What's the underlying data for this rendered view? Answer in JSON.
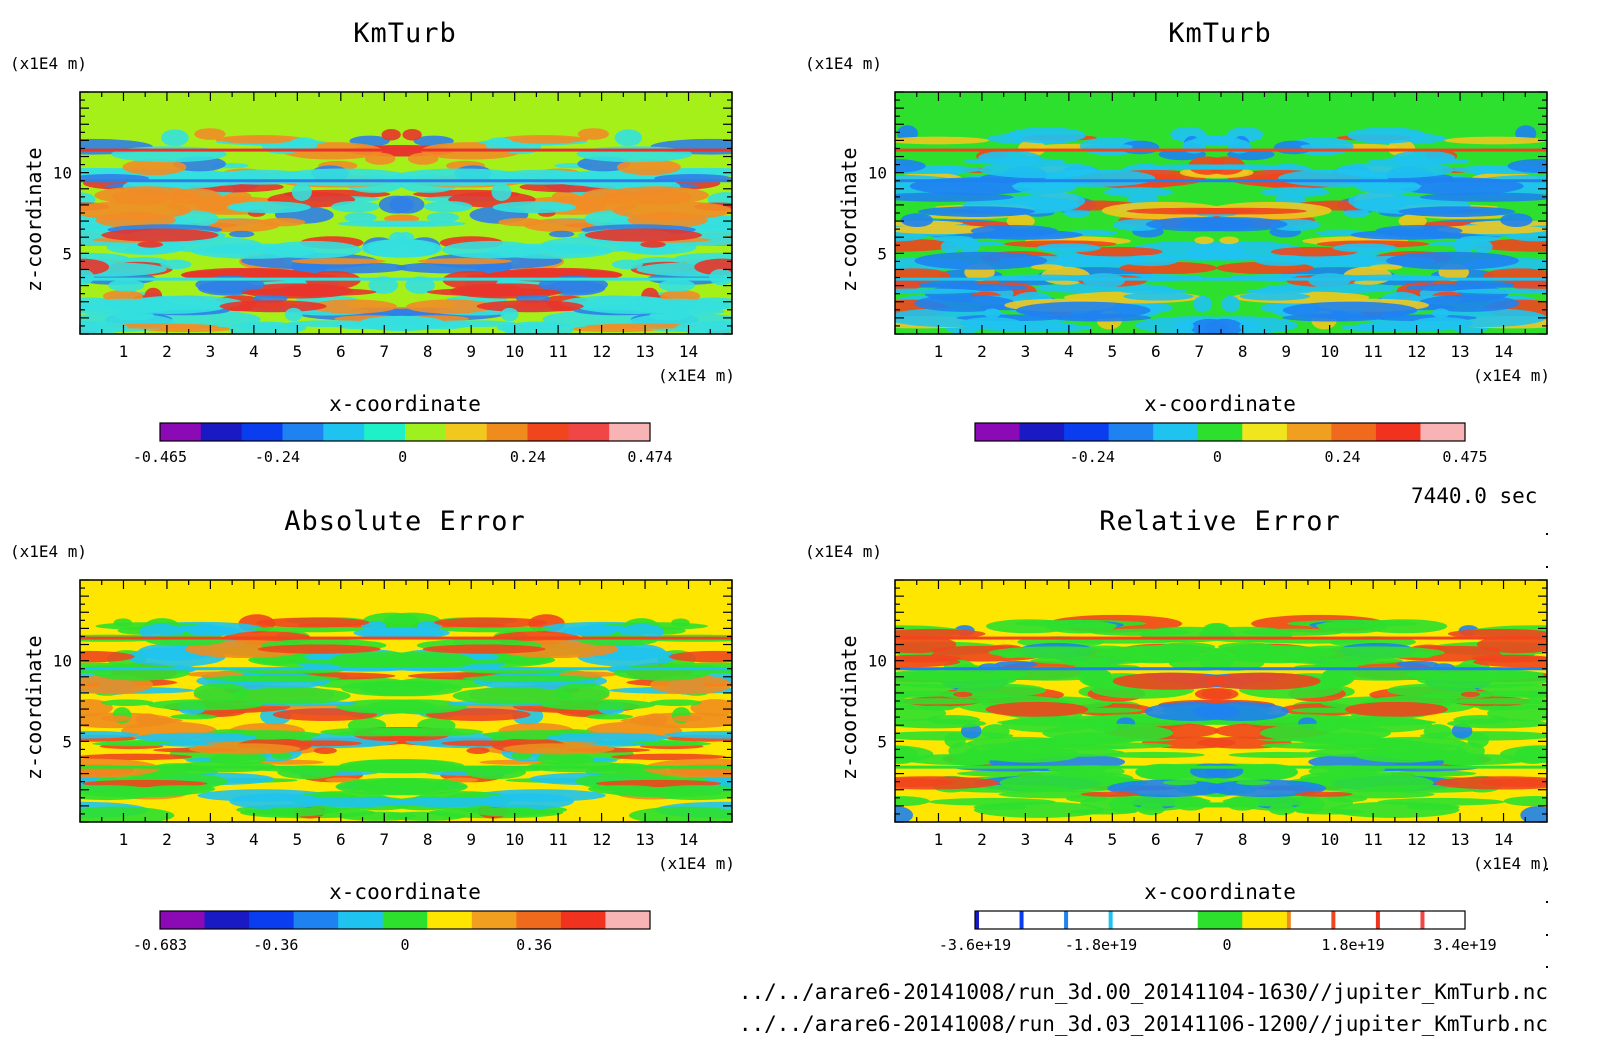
{
  "chart_data": [
    {
      "type": "heatmap",
      "title": "KmTurb",
      "xlabel": "x-coordinate",
      "ylabel": "z-coordinate",
      "x_unit": "(x1E4 m)",
      "y_unit": "(x1E4 m)",
      "xlim": [
        0,
        15
      ],
      "ylim": [
        0,
        15
      ],
      "x_ticks": [
        1,
        2,
        3,
        4,
        5,
        6,
        7,
        8,
        9,
        10,
        11,
        12,
        13,
        14
      ],
      "y_ticks": [
        5,
        10
      ],
      "background_color": "#a6f01a",
      "pattern_colors": [
        "#34e0df",
        "#34e0df",
        "#f28c26",
        "#2f7fe8",
        "#34e0df",
        "#e8342a"
      ],
      "colorbar": {
        "colors": [
          "#8b0ab5",
          "#1a1ac4",
          "#0a3cf0",
          "#1e82f0",
          "#1ec3f0",
          "#1ef0c8",
          "#9ef01e",
          "#f0c81e",
          "#f08c1e",
          "#f0461e",
          "#f04646",
          "#f8b4b4"
        ],
        "tick_labels": [
          "-0.465",
          "-0.24",
          "0",
          "0.24",
          "0.474"
        ],
        "tick_values": [
          -0.465,
          -0.24,
          0,
          0.24,
          0.474
        ],
        "range": [
          -0.465,
          0.474
        ]
      }
    },
    {
      "type": "heatmap",
      "title": "KmTurb",
      "xlabel": "x-coordinate",
      "ylabel": "z-coordinate",
      "x_unit": "(x1E4 m)",
      "y_unit": "(x1E4 m)",
      "xlim": [
        0,
        15
      ],
      "ylim": [
        0,
        15
      ],
      "x_ticks": [
        1,
        2,
        3,
        4,
        5,
        6,
        7,
        8,
        9,
        10,
        11,
        12,
        13,
        14
      ],
      "y_ticks": [
        5,
        10
      ],
      "background_color": "#2ee02e",
      "pattern_colors": [
        "#1ec3f0",
        "#1ec3f0",
        "#f0c81e",
        "#1e82f0",
        "#1ec3f0",
        "#f0461e"
      ],
      "colorbar": {
        "colors": [
          "#8b0ab5",
          "#1a1ac4",
          "#0a3cf0",
          "#1e82f0",
          "#1ec3f0",
          "#2ee02e",
          "#f0e61e",
          "#f0a01e",
          "#f06a1e",
          "#f0321e",
          "#f8b4b4"
        ],
        "tick_labels": [
          "-0.24",
          "0",
          "0.24",
          "0.475"
        ],
        "tick_values": [
          -0.24,
          0,
          0.24,
          0.475
        ],
        "range": [
          -0.465,
          0.475
        ]
      }
    },
    {
      "type": "heatmap",
      "title": "Absolute Error",
      "xlabel": "x-coordinate",
      "ylabel": "z-coordinate",
      "x_unit": "(x1E4 m)",
      "y_unit": "(x1E4 m)",
      "xlim": [
        0,
        15
      ],
      "ylim": [
        0,
        15
      ],
      "x_ticks": [
        1,
        2,
        3,
        4,
        5,
        6,
        7,
        8,
        9,
        10,
        11,
        12,
        13,
        14
      ],
      "y_ticks": [
        5,
        10
      ],
      "background_color": "#ffe600",
      "pattern_colors": [
        "#2ee02e",
        "#2ee02e",
        "#f08c1e",
        "#1ec3f0",
        "#2ee02e",
        "#f0461e"
      ],
      "colorbar": {
        "colors": [
          "#8b0ab5",
          "#1a1ac4",
          "#0a3cf0",
          "#1e82f0",
          "#1ec3f0",
          "#2ee02e",
          "#ffe600",
          "#f0a01e",
          "#f06a1e",
          "#f0321e",
          "#f8b4b4"
        ],
        "tick_labels": [
          "-0.683",
          "-0.36",
          "0",
          "0.36"
        ],
        "tick_values": [
          -0.683,
          -0.36,
          0,
          0.36
        ],
        "range": [
          -0.683,
          0.683
        ]
      }
    },
    {
      "type": "heatmap",
      "title": "Relative Error",
      "xlabel": "x-coordinate",
      "ylabel": "z-coordinate",
      "x_unit": "(x1E4 m)",
      "y_unit": "(x1E4 m)",
      "xlim": [
        0,
        15
      ],
      "ylim": [
        0,
        15
      ],
      "x_ticks": [
        1,
        2,
        3,
        4,
        5,
        6,
        7,
        8,
        9,
        10,
        11,
        12,
        13,
        14
      ],
      "y_ticks": [
        5,
        10
      ],
      "background_color": "#ffe600",
      "pattern_colors": [
        "#2ee02e",
        "#2ee02e",
        "#2ee02e",
        "#1e82f0",
        "#2ee02e",
        "#f0461e"
      ],
      "colorbar": {
        "colors": [
          "#ffffff",
          "#ffffff",
          "#ffffff",
          "#ffffff",
          "#ffffff",
          "#2ee02e",
          "#ffe600",
          "#ffffff",
          "#ffffff",
          "#ffffff",
          "#ffffff"
        ],
        "divider_colors": [
          "#1a1ac4",
          "#0a3cf0",
          "#1e82f0",
          "#1ec3f0",
          "",
          "",
          "",
          "#f08c1e",
          "#f0461e",
          "#f0321e",
          "#f04646"
        ],
        "tick_labels": [
          "-3.6e+19",
          "-1.8e+19",
          "0",
          "1.8e+19",
          "3.4e+19"
        ],
        "tick_values": [
          -3.6e+19,
          -1.8e+19,
          0,
          1.8e+19,
          3.4e+19
        ],
        "range": [
          -3.6e+19,
          3.4e+19
        ]
      }
    }
  ],
  "timestamp": "7440.0 sec",
  "footer": {
    "file_a": "../../arare6-20141008/run_3d.00_20141104-1630//jupiter_KmTurb.nc",
    "file_b": "../../arare6-20141008/run_3d.03_20141106-1200//jupiter_KmTurb.nc"
  }
}
